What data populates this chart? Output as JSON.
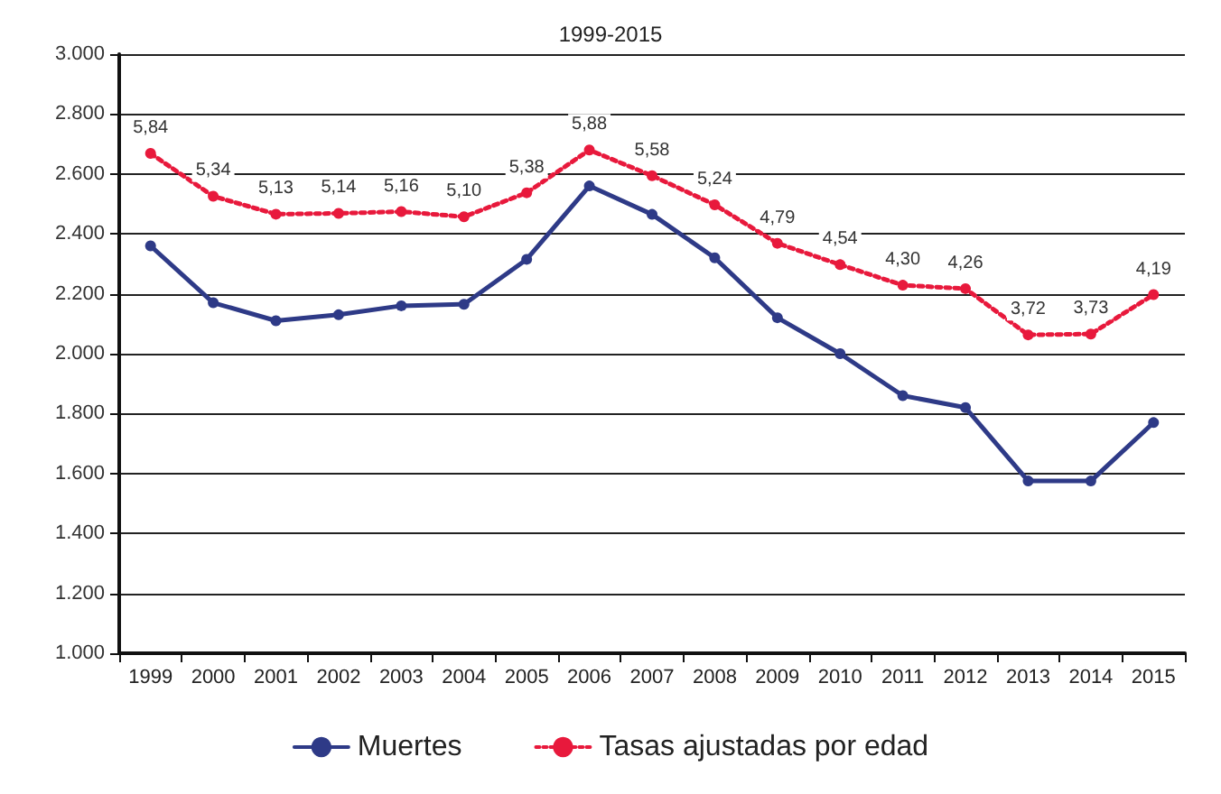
{
  "chart_data": {
    "type": "line",
    "title": "1999-2015",
    "categories": [
      "1999",
      "2000",
      "2001",
      "2002",
      "2003",
      "2004",
      "2005",
      "2006",
      "2007",
      "2008",
      "2009",
      "2010",
      "2011",
      "2012",
      "2013",
      "2014",
      "2015"
    ],
    "series": [
      {
        "name": "Muertes",
        "color": "#2e3a87",
        "line_style": "solid",
        "values": [
          2360,
          2170,
          2110,
          2130,
          2160,
          2165,
          2315,
          2560,
          2465,
          2320,
          2120,
          2000,
          1860,
          1820,
          1575,
          1575,
          1770
        ]
      },
      {
        "name": "Tasas ajustadas por edad",
        "color": "#e8193c",
        "line_style": "dotted",
        "axis": "y2",
        "values": [
          5.84,
          5.34,
          5.13,
          5.14,
          5.16,
          5.1,
          5.38,
          5.88,
          5.58,
          5.24,
          4.79,
          4.54,
          4.3,
          4.26,
          3.72,
          3.73,
          4.19
        ],
        "value_labels": [
          "5,84",
          "5,34",
          "5,13",
          "5,14",
          "5,16",
          "5,10",
          "5,38",
          "5,88",
          "5,58",
          "5,24",
          "4,79",
          "4,54",
          "4,30",
          "4,26",
          "3,72",
          "3,73",
          "4,19"
        ]
      }
    ],
    "ylim": [
      1000,
      3000
    ],
    "y2lim": [
      0,
      7
    ],
    "yticks": [
      {
        "value": 1000,
        "label": "1.000"
      },
      {
        "value": 1200,
        "label": "1.200"
      },
      {
        "value": 1400,
        "label": "1.400"
      },
      {
        "value": 1600,
        "label": "1.600"
      },
      {
        "value": 1800,
        "label": "1.800"
      },
      {
        "value": 2000,
        "label": "2.000"
      },
      {
        "value": 2200,
        "label": "2.200"
      },
      {
        "value": 2400,
        "label": "2.400"
      },
      {
        "value": 2600,
        "label": "2.600"
      },
      {
        "value": 2800,
        "label": "2.800"
      },
      {
        "value": 3000,
        "label": "3.000"
      }
    ],
    "grid": "y",
    "legend": "bottom",
    "marker": "circle"
  }
}
